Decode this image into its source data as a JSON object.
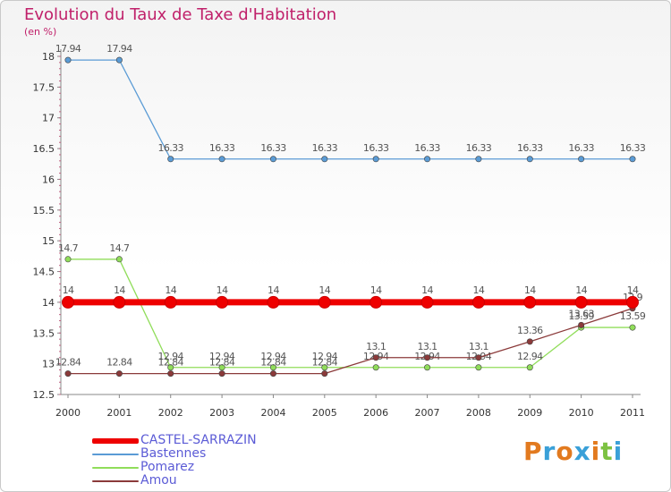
{
  "header": {
    "title": "Evolution du Taux de Taxe d'Habitation",
    "unit": "(en %)"
  },
  "colors": {
    "title": "#c0206a",
    "axis": "#888888",
    "tick_text": "#333333",
    "value_text": "#555555",
    "legend_text": "#5b5bd6"
  },
  "chart_data": {
    "type": "line",
    "title": "Evolution du Taux de Taxe d'Habitation",
    "ylabel": "(en %)",
    "xlabel": "",
    "x": [
      "2000",
      "2001",
      "2002",
      "2003",
      "2004",
      "2005",
      "2006",
      "2007",
      "2008",
      "2009",
      "2010",
      "2011"
    ],
    "ylim": [
      12.5,
      18
    ],
    "yticks": [
      "12.5",
      "13",
      "13.5",
      "14",
      "14.5",
      "15",
      "15.5",
      "16",
      "16.5",
      "17",
      "17.5",
      "18"
    ],
    "series": [
      {
        "name": "CASTEL-SARRAZIN",
        "color": "#ee0000",
        "values": [
          14,
          14,
          14,
          14,
          14,
          14,
          14,
          14,
          14,
          14,
          14,
          14
        ],
        "labels": [
          "14",
          "14",
          "14",
          "14",
          "14",
          "14",
          "14",
          "14",
          "14",
          "14",
          "14",
          "14"
        ]
      },
      {
        "name": "Bastennes",
        "color": "#5a9bd5",
        "values": [
          17.94,
          17.94,
          16.33,
          16.33,
          16.33,
          16.33,
          16.33,
          16.33,
          16.33,
          16.33,
          16.33,
          16.33
        ],
        "labels": [
          "17.94",
          "17.94",
          "16.33",
          "16.33",
          "16.33",
          "16.33",
          "16.33",
          "16.33",
          "16.33",
          "16.33",
          "16.33",
          "16.33"
        ]
      },
      {
        "name": "Pomarez",
        "color": "#90dd5a",
        "values": [
          14.7,
          14.7,
          12.94,
          12.94,
          12.94,
          12.94,
          12.94,
          12.94,
          12.94,
          12.94,
          13.59,
          13.59
        ],
        "labels": [
          "14.7",
          "14.7",
          "12.94",
          "12.94",
          "12.94",
          "12.94",
          "12.94",
          "12.94",
          "12.94",
          "12.94",
          "13.59",
          "13.59"
        ]
      },
      {
        "name": "Amou",
        "color": "#8b3a3a",
        "values": [
          12.84,
          12.84,
          12.84,
          12.84,
          12.84,
          12.84,
          13.1,
          13.1,
          13.1,
          13.36,
          13.63,
          13.9
        ],
        "labels": [
          "12.84",
          "12.84",
          "12.84",
          "12.84",
          "12.84",
          "12.84",
          "13.1",
          "13.1",
          "13.1",
          "13.36",
          "13.63",
          "13.9"
        ]
      }
    ]
  },
  "legend": {
    "items": [
      "CASTEL-SARRAZIN",
      "Bastennes",
      "Pomarez",
      "Amou"
    ]
  },
  "logo": {
    "text": "Proxiti",
    "colors": [
      "#e27a1f",
      "#3aa0d8",
      "#e27a1f",
      "#3aa0d8",
      "#e27a1f",
      "#7cc242",
      "#3aa0d8"
    ]
  }
}
